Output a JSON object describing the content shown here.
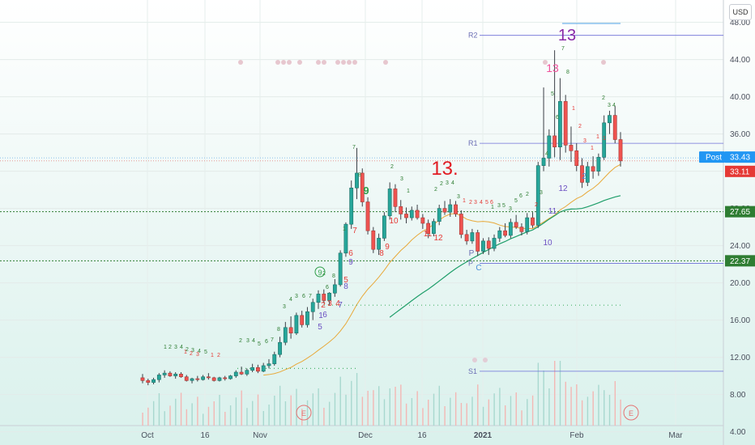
{
  "currency_button": "USD",
  "chart_data": {
    "type": "candlestick",
    "y_axis": {
      "min": 2.4,
      "max": 50.4,
      "ticks": [
        4.0,
        8.0,
        12.0,
        16.0,
        20.0,
        24.0,
        28.0,
        32.0,
        36.0,
        40.0,
        44.0,
        48.0
      ]
    },
    "x_axis_labels": [
      {
        "label": "Oct",
        "bold": false
      },
      {
        "label": "16",
        "bold": false
      },
      {
        "label": "Nov",
        "bold": false
      },
      {
        "label": "Dec",
        "bold": false
      },
      {
        "label": "16",
        "bold": false
      },
      {
        "label": "2021",
        "bold": true
      },
      {
        "label": "Feb",
        "bold": false
      },
      {
        "label": "Mar",
        "bold": false
      }
    ],
    "price_tags": [
      {
        "name": "post",
        "label": "Post",
        "value": "33.43",
        "color": "#2196f3"
      },
      {
        "name": "last",
        "label": "",
        "value": "33.11",
        "color": "#e53935"
      },
      {
        "name": "level-upper",
        "label": "",
        "value": "27.65",
        "color": "#2e7d32"
      },
      {
        "name": "level-lower",
        "label": "",
        "value": "22.37",
        "color": "#2e7d32"
      }
    ],
    "horizontal_levels": [
      27.65,
      22.37
    ],
    "pivots": [
      {
        "label": "R2",
        "value": 46.6
      },
      {
        "label": "R1",
        "value": 35.0
      },
      {
        "label": "P",
        "value": 22.1
      },
      {
        "label": "S1",
        "value": 10.5
      }
    ],
    "candles": [
      [
        9.8,
        10.2,
        9.2,
        9.5
      ],
      [
        9.5,
        9.7,
        9.0,
        9.3
      ],
      [
        9.3,
        9.8,
        9.1,
        9.6
      ],
      [
        9.6,
        10.3,
        9.3,
        10.1
      ],
      [
        10.1,
        10.6,
        9.8,
        10.3
      ],
      [
        10.3,
        10.5,
        9.9,
        10.0
      ],
      [
        10.0,
        10.4,
        9.7,
        10.2
      ],
      [
        10.2,
        10.4,
        9.8,
        9.9
      ],
      [
        9.9,
        10.1,
        9.4,
        9.5
      ],
      [
        9.5,
        9.8,
        9.2,
        9.7
      ],
      [
        9.7,
        10.0,
        9.4,
        9.6
      ],
      [
        9.6,
        10.1,
        9.5,
        9.9
      ],
      [
        9.9,
        10.3,
        9.6,
        9.8
      ],
      [
        9.8,
        9.9,
        9.4,
        9.5
      ],
      [
        9.5,
        9.9,
        9.4,
        9.8
      ],
      [
        9.8,
        10.0,
        9.5,
        9.7
      ],
      [
        9.7,
        10.1,
        9.6,
        10.0
      ],
      [
        10.0,
        10.6,
        9.8,
        10.4
      ],
      [
        10.4,
        11.0,
        10.1,
        10.2
      ],
      [
        10.2,
        10.8,
        10.0,
        10.6
      ],
      [
        10.6,
        11.3,
        10.4,
        10.9
      ],
      [
        10.9,
        11.2,
        10.3,
        10.5
      ],
      [
        10.5,
        11.4,
        10.4,
        11.1
      ],
      [
        11.1,
        11.8,
        10.8,
        11.3
      ],
      [
        11.3,
        12.6,
        11.1,
        12.3
      ],
      [
        12.3,
        14.2,
        12.0,
        13.6
      ],
      [
        13.6,
        15.8,
        13.3,
        15.2
      ],
      [
        15.2,
        16.4,
        14.0,
        14.6
      ],
      [
        14.6,
        16.8,
        14.4,
        16.5
      ],
      [
        16.5,
        17.0,
        15.2,
        15.5
      ],
      [
        15.5,
        17.4,
        15.2,
        16.9
      ],
      [
        16.9,
        18.3,
        16.0,
        17.9
      ],
      [
        17.9,
        19.2,
        17.2,
        18.8
      ],
      [
        18.8,
        19.3,
        17.8,
        18.1
      ],
      [
        18.1,
        19.0,
        17.6,
        18.9
      ],
      [
        18.9,
        20.4,
        18.5,
        19.8
      ],
      [
        19.8,
        23.5,
        19.6,
        23.2
      ],
      [
        23.2,
        26.5,
        22.8,
        26.3
      ],
      [
        26.3,
        31.0,
        25.8,
        30.2
      ],
      [
        30.2,
        34.5,
        29.0,
        31.8
      ],
      [
        31.8,
        32.3,
        28.2,
        28.7
      ],
      [
        28.7,
        29.2,
        25.2,
        25.6
      ],
      [
        25.6,
        26.0,
        23.2,
        23.6
      ],
      [
        23.6,
        25.3,
        23.0,
        24.8
      ],
      [
        24.8,
        27.6,
        24.5,
        27.2
      ],
      [
        27.2,
        30.8,
        26.8,
        30.1
      ],
      [
        30.1,
        30.6,
        27.6,
        28.2
      ],
      [
        28.2,
        28.9,
        26.8,
        27.4
      ],
      [
        27.4,
        28.1,
        26.4,
        27.0
      ],
      [
        27.0,
        28.2,
        26.7,
        27.8
      ],
      [
        27.8,
        28.4,
        26.8,
        27.0
      ],
      [
        27.0,
        27.4,
        25.8,
        26.4
      ],
      [
        26.4,
        26.8,
        24.8,
        25.3
      ],
      [
        25.3,
        26.9,
        25.0,
        26.6
      ],
      [
        26.6,
        28.4,
        26.2,
        28.0
      ],
      [
        28.0,
        28.8,
        27.3,
        27.6
      ],
      [
        27.6,
        29.0,
        27.1,
        28.4
      ],
      [
        28.4,
        28.8,
        27.1,
        27.4
      ],
      [
        27.4,
        27.8,
        24.8,
        25.2
      ],
      [
        25.2,
        25.7,
        24.1,
        24.5
      ],
      [
        24.5,
        25.8,
        24.2,
        25.4
      ],
      [
        25.4,
        25.7,
        22.9,
        23.4
      ],
      [
        23.4,
        24.8,
        23.1,
        24.5
      ],
      [
        24.5,
        24.9,
        23.0,
        23.7
      ],
      [
        23.7,
        25.2,
        23.4,
        24.8
      ],
      [
        24.8,
        26.0,
        24.4,
        25.6
      ],
      [
        25.6,
        26.4,
        24.9,
        25.1
      ],
      [
        25.1,
        26.9,
        24.8,
        26.5
      ],
      [
        26.5,
        27.3,
        25.8,
        26.0
      ],
      [
        26.0,
        26.4,
        25.1,
        25.5
      ],
      [
        25.5,
        27.5,
        25.2,
        27.0
      ],
      [
        27.0,
        27.6,
        25.9,
        26.2
      ],
      [
        26.2,
        33.0,
        25.9,
        32.6
      ],
      [
        32.6,
        41.0,
        32.0,
        33.4
      ],
      [
        33.4,
        36.5,
        32.5,
        35.8
      ],
      [
        35.8,
        45.0,
        33.5,
        34.6
      ],
      [
        34.6,
        42.0,
        33.2,
        39.5
      ],
      [
        39.5,
        40.2,
        34.0,
        34.8
      ],
      [
        34.8,
        36.8,
        33.0,
        34.2
      ],
      [
        34.2,
        35.0,
        32.0,
        32.6
      ],
      [
        32.6,
        33.4,
        30.2,
        30.8
      ],
      [
        30.8,
        33.0,
        30.4,
        32.5
      ],
      [
        32.5,
        33.6,
        31.2,
        32.0
      ],
      [
        32.0,
        33.9,
        31.5,
        33.5
      ],
      [
        33.5,
        38.0,
        33.2,
        37.2
      ],
      [
        37.2,
        38.5,
        36.0,
        38.0
      ],
      [
        38.0,
        39.0,
        35.0,
        35.4
      ],
      [
        35.4,
        36.2,
        32.5,
        33.11
      ]
    ]
  }
}
